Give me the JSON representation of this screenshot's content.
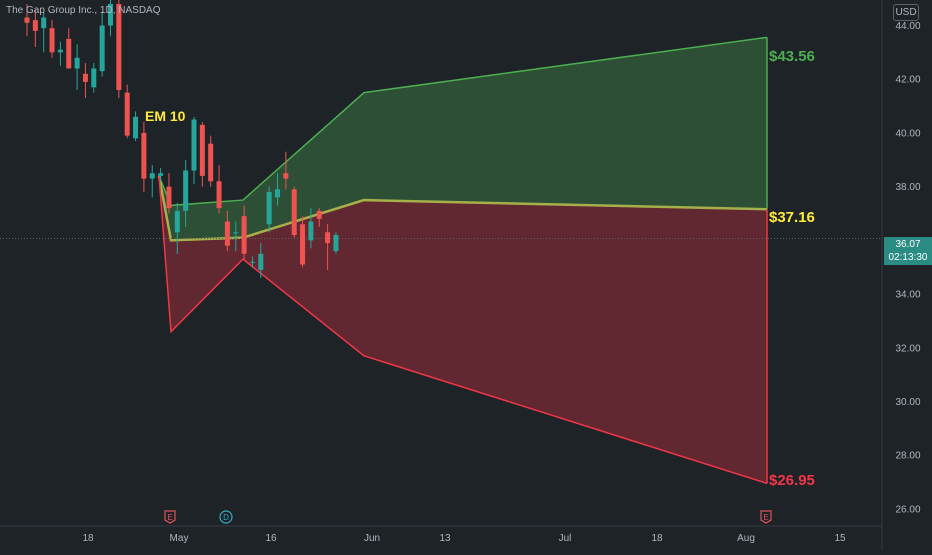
{
  "header": {
    "title": "The Gap Group Inc., 1D, NASDAQ",
    "currency": "USD"
  },
  "price_tag": {
    "price": "36.07",
    "countdown": "02:13:30"
  },
  "chart_data": {
    "type": "candlestick",
    "y_ticks": [
      "44.00",
      "42.00",
      "40.00",
      "38.00",
      "36.00",
      "34.00",
      "32.00",
      "30.00",
      "28.00",
      "26.00"
    ],
    "ylim": [
      25.4,
      44.95
    ],
    "x_ticks": [
      "18",
      "May",
      "16",
      "Jun",
      "13",
      "Jul",
      "18",
      "Aug",
      "15"
    ],
    "grid": false,
    "last_price": 36.07,
    "candles": [
      {
        "o": 44.3,
        "h": 44.8,
        "l": 43.6,
        "c": 44.1
      },
      {
        "o": 44.2,
        "h": 44.6,
        "l": 43.2,
        "c": 43.8
      },
      {
        "o": 43.9,
        "h": 44.5,
        "l": 43.0,
        "c": 44.3
      },
      {
        "o": 43.9,
        "h": 44.2,
        "l": 42.8,
        "c": 43.0
      },
      {
        "o": 43.0,
        "h": 43.4,
        "l": 42.5,
        "c": 43.1
      },
      {
        "o": 43.5,
        "h": 43.9,
        "l": 42.4,
        "c": 42.4
      },
      {
        "o": 42.4,
        "h": 43.3,
        "l": 41.6,
        "c": 42.8
      },
      {
        "o": 42.2,
        "h": 42.6,
        "l": 41.3,
        "c": 41.9
      },
      {
        "o": 41.7,
        "h": 42.6,
        "l": 41.5,
        "c": 42.4
      },
      {
        "o": 42.3,
        "h": 44.5,
        "l": 42.1,
        "c": 44.0
      },
      {
        "o": 44.0,
        "h": 45.5,
        "l": 43.6,
        "c": 44.8
      },
      {
        "o": 44.8,
        "h": 45.0,
        "l": 41.3,
        "c": 41.6
      },
      {
        "o": 41.5,
        "h": 41.8,
        "l": 39.8,
        "c": 39.9
      },
      {
        "o": 39.8,
        "h": 40.8,
        "l": 39.7,
        "c": 40.6
      },
      {
        "o": 40.0,
        "h": 40.4,
        "l": 37.8,
        "c": 38.3
      },
      {
        "o": 38.3,
        "h": 38.8,
        "l": 37.6,
        "c": 38.5
      },
      {
        "o": 38.4,
        "h": 38.7,
        "l": 38.2,
        "c": 38.5
      },
      {
        "o": 38.0,
        "h": 38.5,
        "l": 37.0,
        "c": 37.2
      },
      {
        "o": 36.3,
        "h": 37.4,
        "l": 35.5,
        "c": 37.1
      },
      {
        "o": 37.1,
        "h": 39.0,
        "l": 36.5,
        "c": 38.6
      },
      {
        "o": 38.6,
        "h": 40.6,
        "l": 38.1,
        "c": 40.5
      },
      {
        "o": 40.3,
        "h": 40.4,
        "l": 38.0,
        "c": 38.4
      },
      {
        "o": 39.6,
        "h": 39.9,
        "l": 38.0,
        "c": 38.2
      },
      {
        "o": 38.2,
        "h": 38.8,
        "l": 37.0,
        "c": 37.2
      },
      {
        "o": 36.7,
        "h": 37.1,
        "l": 35.6,
        "c": 35.8
      },
      {
        "o": 36.3,
        "h": 36.7,
        "l": 35.6,
        "c": 36.3
      },
      {
        "o": 36.9,
        "h": 37.3,
        "l": 35.3,
        "c": 35.5
      },
      {
        "o": 35.2,
        "h": 35.4,
        "l": 35.0,
        "c": 35.2
      },
      {
        "o": 34.9,
        "h": 35.9,
        "l": 34.6,
        "c": 35.5
      },
      {
        "o": 36.6,
        "h": 38.0,
        "l": 36.3,
        "c": 37.8
      },
      {
        "o": 37.6,
        "h": 38.5,
        "l": 37.3,
        "c": 37.9
      },
      {
        "o": 38.5,
        "h": 39.3,
        "l": 37.9,
        "c": 38.3
      },
      {
        "o": 37.9,
        "h": 38.0,
        "l": 36.1,
        "c": 36.2
      },
      {
        "o": 36.6,
        "h": 36.9,
        "l": 35.0,
        "c": 35.1
      },
      {
        "o": 36.0,
        "h": 37.2,
        "l": 35.7,
        "c": 36.7
      },
      {
        "o": 37.1,
        "h": 37.2,
        "l": 36.5,
        "c": 36.8
      },
      {
        "o": 36.3,
        "h": 36.6,
        "l": 34.9,
        "c": 35.9
      },
      {
        "o": 35.6,
        "h": 36.3,
        "l": 35.5,
        "c": 36.2
      }
    ],
    "expected_move": {
      "label": "EM 10",
      "upper_label": "$43.56",
      "mid_label": "$37.16",
      "lower_label": "$26.95",
      "colors": {
        "upper": "#4caf50",
        "mid": "#ffeb3b",
        "lower": "#f23645",
        "up": "#26a69a",
        "down": "#ef5350"
      }
    },
    "event_markers": [
      {
        "x": "May",
        "letter": "E",
        "kind": "earnings"
      },
      {
        "x": "May",
        "letter": "D",
        "kind": "dividend"
      },
      {
        "x": "Aug",
        "letter": "E",
        "kind": "earnings"
      }
    ]
  }
}
